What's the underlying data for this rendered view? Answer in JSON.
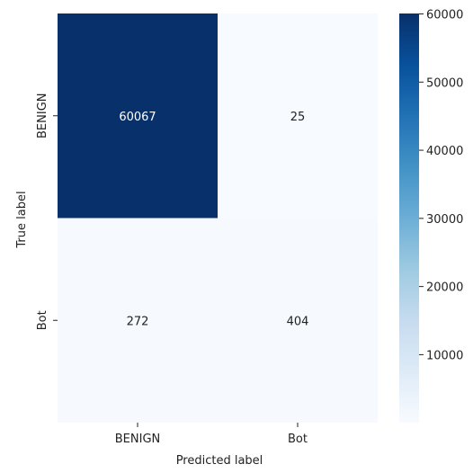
{
  "chart_data": {
    "type": "heatmap",
    "title": "",
    "xlabel": "Predicted label",
    "ylabel": "True label",
    "x_categories": [
      "BENIGN",
      "Bot"
    ],
    "y_categories": [
      "BENIGN",
      "Bot"
    ],
    "matrix": [
      [
        60067,
        25
      ],
      [
        272,
        404
      ]
    ],
    "colormap": "Blues",
    "color_low": "#f7fbff",
    "color_high": "#08306b",
    "colorbar": {
      "range": [
        25,
        60067
      ],
      "ticks": [
        10000,
        20000,
        30000,
        40000,
        50000,
        60000
      ],
      "tick_labels": [
        "10000",
        "20000",
        "30000",
        "40000",
        "50000",
        "60000"
      ]
    },
    "grid": false,
    "legend": "colorbar-right"
  }
}
